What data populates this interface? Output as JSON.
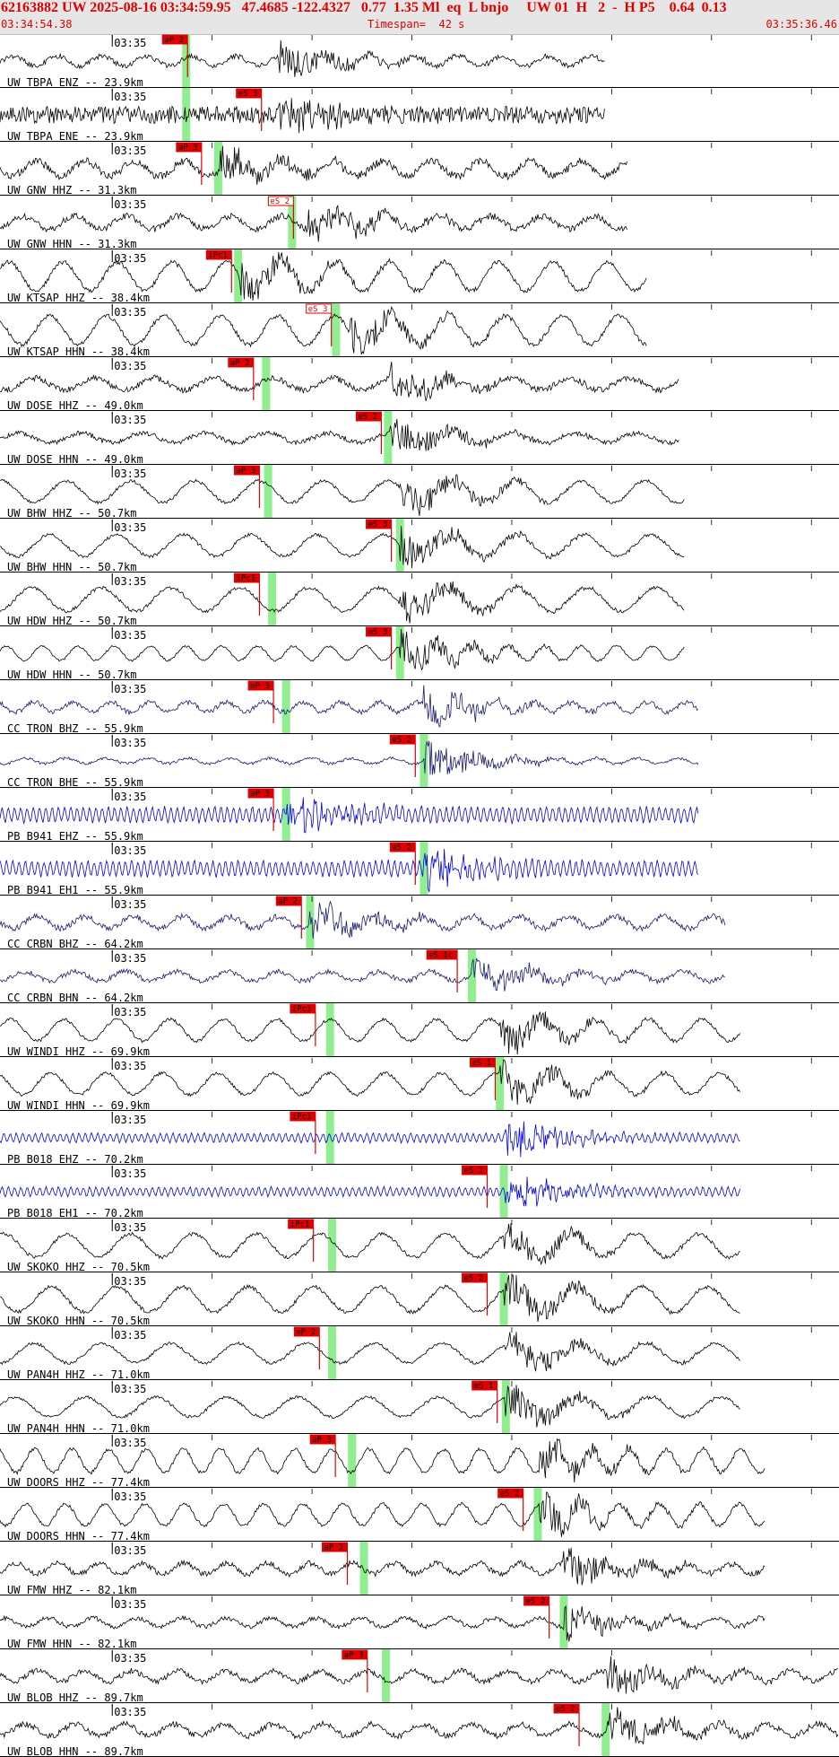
{
  "header": {
    "title": "62163882 UW 2025-08-16 03:34:59.95   47.4685 -122.4327   0.77  1.35 Ml  eq  L bnjo     UW 01  H   2  -  H P5    0.64  0.13",
    "start_time": "03:34:54.38",
    "timespan": "Timespan=  42 s",
    "end_time": "03:35:36.46"
  },
  "colors": {
    "title": "#e00000",
    "trace_default": "#000000",
    "trace_cc": "#1a1a6e",
    "trace_pb": "#0000ee",
    "pick_fill": "#e00000",
    "window": "#90ee90",
    "separator": "#000000"
  },
  "chart_data": {
    "type": "line",
    "title": "",
    "xlabel": "",
    "ylabel": "",
    "x_range": [
      "03:34:54.38",
      "03:35:36.46"
    ],
    "minute_tick_label": "03:35",
    "minute_tick_offset_s": 5.62,
    "traces": [
      {
        "label": "UW TBPA ENZ -- 23.9km",
        "net": "UW",
        "pick": "aP 2",
        "pick_t": 9.3,
        "pick_filled": true,
        "win_t": 9.3,
        "amp": 0.45,
        "style": "burst",
        "burst_t": 13.9,
        "s_t": 13.0,
        "end_t": 30.3
      },
      {
        "label": "UW TBPA ENE -- 23.9km",
        "net": "UW",
        "pick": "eS 3",
        "pick_t": 13.0,
        "pick_filled": true,
        "win_t": 9.3,
        "amp": 0.6,
        "style": "noise",
        "burst_t": 13.9,
        "s_t": 13.0,
        "end_t": 30.3
      },
      {
        "label": "UW GNW HHZ -- 31.3km",
        "net": "UW",
        "pick": "aP 3",
        "pick_t": 10.0,
        "pick_filled": true,
        "win_t": 10.9,
        "amp": 0.7,
        "style": "burst",
        "burst_t": 11.0,
        "s_t": 14.6,
        "end_t": 31.4
      },
      {
        "label": "UW GNW HHN -- 31.3km",
        "net": "UW",
        "pick": "eS 2",
        "pick_t": 14.6,
        "pick_filled": false,
        "win_t": 14.6,
        "amp": 0.6,
        "style": "burst",
        "burst_t": 15.4,
        "s_t": 15.4,
        "end_t": 31.4
      },
      {
        "label": "UW KTSAP HHZ -- 38.4km",
        "net": "UW",
        "pick": "iPc1",
        "pick_t": 11.5,
        "pick_filled": true,
        "win_t": 11.9,
        "amp": 0.8,
        "style": "wave",
        "burst_t": 12.0,
        "s_t": 16.8,
        "end_t": 32.4
      },
      {
        "label": "UW KTSAP HHN -- 38.4km",
        "net": "UW",
        "pick": "eS 3",
        "pick_t": 16.5,
        "pick_filled": false,
        "win_t": 16.8,
        "amp": 0.8,
        "style": "wave",
        "burst_t": 17.5,
        "s_t": 17.5,
        "end_t": 32.4
      },
      {
        "label": "UW DOSE HHZ -- 49.0km",
        "net": "UW",
        "pick": "aP 2",
        "pick_t": 12.6,
        "pick_filled": true,
        "win_t": 13.3,
        "amp": 0.55,
        "style": "burst",
        "burst_t": 19.5,
        "s_t": 19.5,
        "end_t": 34.0
      },
      {
        "label": "UW DOSE HHN -- 49.0km",
        "net": "UW",
        "pick": "eS 2",
        "pick_t": 19.0,
        "pick_filled": true,
        "win_t": 19.4,
        "amp": 0.45,
        "style": "burst",
        "burst_t": 19.5,
        "s_t": 19.5,
        "end_t": 34.0
      },
      {
        "label": "UW BHW HHZ -- 50.7km",
        "net": "UW",
        "pick": "aP 3",
        "pick_t": 12.9,
        "pick_filled": true,
        "win_t": 13.4,
        "amp": 0.6,
        "style": "wave",
        "burst_t": 20.0,
        "s_t": 20.0,
        "end_t": 34.3
      },
      {
        "label": "UW BHW HHN -- 50.7km",
        "net": "UW",
        "pick": "eS 3",
        "pick_t": 19.5,
        "pick_filled": true,
        "win_t": 20.0,
        "amp": 0.6,
        "style": "wave",
        "burst_t": 20.0,
        "s_t": 20.0,
        "end_t": 34.3
      },
      {
        "label": "UW HDW HHZ -- 50.7km",
        "net": "UW",
        "pick": "iPc1",
        "pick_t": 12.9,
        "pick_filled": true,
        "win_t": 13.6,
        "amp": 0.65,
        "style": "wave",
        "burst_t": 20.0,
        "s_t": 20.0,
        "end_t": 34.3
      },
      {
        "label": "UW HDW HHN -- 50.7km",
        "net": "UW",
        "pick": "eS 3",
        "pick_t": 19.5,
        "pick_filled": true,
        "win_t": 20.0,
        "amp": 0.4,
        "style": "wave",
        "burst_t": 20.0,
        "s_t": 20.0,
        "end_t": 34.3
      },
      {
        "label": "CC TRON BHZ -- 55.9km",
        "net": "CC",
        "pick": "eP 3",
        "pick_t": 13.6,
        "pick_filled": true,
        "win_t": 14.3,
        "amp": 0.45,
        "style": "mix",
        "burst_t": 21.2,
        "s_t": 21.2,
        "end_t": 35.0
      },
      {
        "label": "CC TRON BHE -- 55.9km",
        "net": "CC",
        "pick": "eS 2",
        "pick_t": 20.7,
        "pick_filled": true,
        "win_t": 21.2,
        "amp": 0.25,
        "style": "mix",
        "burst_t": 21.2,
        "s_t": 21.2,
        "end_t": 35.0
      },
      {
        "label": "PB B941 EHZ -- 55.9km",
        "net": "PB",
        "pick": "aP 3",
        "pick_t": 13.6,
        "pick_filled": true,
        "win_t": 14.3,
        "amp": 0.5,
        "style": "hf",
        "burst_t": 14.3,
        "s_t": 21.2,
        "end_t": 35.0
      },
      {
        "label": "PB B941 EH1 -- 55.9km",
        "net": "PB",
        "pick": "aS 2",
        "pick_t": 20.7,
        "pick_filled": true,
        "win_t": 21.2,
        "amp": 0.5,
        "style": "hf",
        "burst_t": 21.2,
        "s_t": 21.2,
        "end_t": 35.0
      },
      {
        "label": "CC CRBN BHZ -- 64.2km",
        "net": "CC",
        "pick": "aP 2",
        "pick_t": 15.0,
        "pick_filled": true,
        "win_t": 15.5,
        "amp": 0.55,
        "style": "mix",
        "burst_t": 15.5,
        "s_t": 23.6,
        "end_t": 36.3
      },
      {
        "label": "CC CRBN BHN -- 64.2km",
        "net": "CC",
        "pick": "eS 1c",
        "pick_t": 22.8,
        "pick_filled": true,
        "win_t": 23.6,
        "amp": 0.45,
        "style": "mix",
        "burst_t": 23.6,
        "s_t": 23.6,
        "end_t": 36.3
      },
      {
        "label": "UW WINDI HHZ -- 69.9km",
        "net": "UW",
        "pick": "iPc1",
        "pick_t": 15.7,
        "pick_filled": true,
        "win_t": 16.5,
        "amp": 0.6,
        "style": "wave",
        "burst_t": 25.0,
        "s_t": 25.0,
        "end_t": 37.1
      },
      {
        "label": "UW WINDI HHN -- 69.9km",
        "net": "UW",
        "pick": "eS 1",
        "pick_t": 24.7,
        "pick_filled": true,
        "win_t": 25.0,
        "amp": 0.6,
        "style": "wave",
        "burst_t": 25.0,
        "s_t": 25.0,
        "end_t": 37.1
      },
      {
        "label": "PB B018 EHZ -- 70.2km",
        "net": "PB",
        "pick": "iPc1",
        "pick_t": 15.7,
        "pick_filled": true,
        "win_t": 16.5,
        "amp": 0.3,
        "style": "hf",
        "burst_t": 25.3,
        "s_t": 25.3,
        "end_t": 37.1
      },
      {
        "label": "PB B018 EH1 -- 70.2km",
        "net": "PB",
        "pick": "eS 1",
        "pick_t": 24.3,
        "pick_filled": true,
        "win_t": 25.2,
        "amp": 0.3,
        "style": "hf",
        "burst_t": 25.3,
        "s_t": 25.3,
        "end_t": 37.1
      },
      {
        "label": "UW SKOKO HHZ -- 70.5km",
        "net": "UW",
        "pick": "iPc1",
        "pick_t": 15.6,
        "pick_filled": true,
        "win_t": 16.6,
        "amp": 0.65,
        "style": "wave",
        "burst_t": 25.2,
        "s_t": 25.2,
        "end_t": 37.1
      },
      {
        "label": "UW SKOKO HHN -- 70.5km",
        "net": "UW",
        "pick": "eS 2",
        "pick_t": 24.3,
        "pick_filled": true,
        "win_t": 25.2,
        "amp": 0.7,
        "style": "wave",
        "burst_t": 25.2,
        "s_t": 25.2,
        "end_t": 37.1
      },
      {
        "label": "UW PAN4H HHZ -- 71.0km",
        "net": "UW",
        "pick": "eP 2",
        "pick_t": 15.9,
        "pick_filled": true,
        "win_t": 16.6,
        "amp": 0.55,
        "style": "wave",
        "burst_t": 25.3,
        "s_t": 25.3,
        "end_t": 37.1
      },
      {
        "label": "UW PAN4H HHN -- 71.0km",
        "net": "UW",
        "pick": "eS 1",
        "pick_t": 24.8,
        "pick_filled": true,
        "win_t": 25.3,
        "amp": 0.55,
        "style": "wave",
        "burst_t": 25.3,
        "s_t": 25.3,
        "end_t": 37.1
      },
      {
        "label": "UW DOORS HHZ -- 77.4km",
        "net": "UW",
        "pick": "aP 3",
        "pick_t": 16.7,
        "pick_filled": true,
        "win_t": 17.6,
        "amp": 0.65,
        "style": "wave",
        "burst_t": 27.0,
        "s_t": 27.0,
        "end_t": 38.3
      },
      {
        "label": "UW DOORS HHN -- 77.4km",
        "net": "UW",
        "pick": "eS 2",
        "pick_t": 26.1,
        "pick_filled": true,
        "win_t": 26.9,
        "amp": 0.6,
        "style": "wave",
        "burst_t": 27.0,
        "s_t": 27.0,
        "end_t": 38.3
      },
      {
        "label": "UW FMW HHZ -- 82.1km",
        "net": "UW",
        "pick": "aP 2",
        "pick_t": 17.3,
        "pick_filled": true,
        "win_t": 18.2,
        "amp": 0.5,
        "style": "mix",
        "burst_t": 28.2,
        "s_t": 28.2,
        "end_t": 38.3
      },
      {
        "label": "UW FMW HHN -- 82.1km",
        "net": "UW",
        "pick": "eS 2",
        "pick_t": 27.4,
        "pick_filled": true,
        "win_t": 28.2,
        "amp": 0.4,
        "style": "burst",
        "burst_t": 28.2,
        "s_t": 28.2,
        "end_t": 38.3
      },
      {
        "label": "UW BLOB HHZ -- 89.7km",
        "net": "UW",
        "pick": "aP 3",
        "pick_t": 18.3,
        "pick_filled": true,
        "win_t": 19.3,
        "amp": 0.5,
        "style": "mix",
        "burst_t": 30.4,
        "s_t": 30.4,
        "end_t": 42.0
      },
      {
        "label": "UW BLOB HHN -- 89.7km",
        "net": "UW",
        "pick": "eS 2",
        "pick_t": 28.9,
        "pick_filled": true,
        "win_t": 30.3,
        "amp": 0.55,
        "style": "burst",
        "burst_t": 30.4,
        "s_t": 30.4,
        "end_t": 42.0
      }
    ]
  }
}
